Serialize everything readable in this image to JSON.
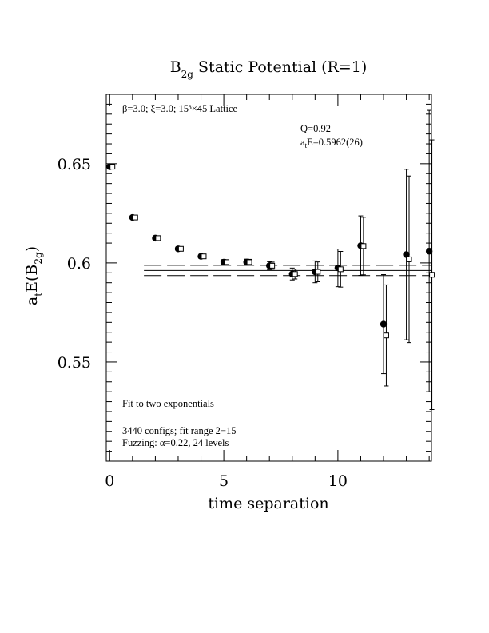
{
  "chart_data": {
    "type": "scatter",
    "title": {
      "main": "B",
      "sub": "2g",
      "rest": " Static Potential (R=1)"
    },
    "xlabel": "time separation",
    "ylabel": {
      "a": "a",
      "a_sub": "t",
      "mid": "E(B",
      "mid_sub": "2g",
      "end": ")"
    },
    "xlim": [
      -0.15,
      14.1
    ],
    "ylim": [
      0.5,
      0.685
    ],
    "x_ticks": [
      "0",
      "5",
      "10"
    ],
    "x_tick_values": [
      0,
      5,
      10
    ],
    "y_ticks": [
      "0.55",
      "0.6",
      "0.65"
    ],
    "y_tick_values": [
      0.55,
      0.6,
      0.65
    ],
    "annotations": {
      "lattice": "β=3.0; ξ=3.0; 15³×45 Lattice",
      "q": "Q=0.92",
      "energy_a": "a",
      "energy_sub": "t",
      "energy_rest": "E=0.5962(26)",
      "fit": "Fit to two exponentials",
      "configs": "3440 configs; fit range 2−15",
      "fuzzing": "Fuzzing: α=0.22, 24 levels"
    },
    "fit": {
      "x_range": [
        1.5,
        14.1
      ],
      "value": 0.5962,
      "lower": 0.5936,
      "upper": 0.5988
    },
    "series": [
      {
        "marker": "filled-circle",
        "points": [
          {
            "x": 0,
            "y": 0.6485,
            "err": 0.0008
          },
          {
            "x": 1,
            "y": 0.6229,
            "err": 0.0008
          },
          {
            "x": 2,
            "y": 0.6125,
            "err": 0.0009
          },
          {
            "x": 3,
            "y": 0.6071,
            "err": 0.001
          },
          {
            "x": 4,
            "y": 0.6033,
            "err": 0.0011
          },
          {
            "x": 5,
            "y": 0.6004,
            "err": 0.0013
          },
          {
            "x": 6,
            "y": 0.6004,
            "err": 0.0015
          },
          {
            "x": 7,
            "y": 0.5986,
            "err": 0.002
          },
          {
            "x": 8,
            "y": 0.5944,
            "err": 0.003
          },
          {
            "x": 9,
            "y": 0.5955,
            "err": 0.0055
          },
          {
            "x": 10,
            "y": 0.5975,
            "err": 0.0095
          },
          {
            "x": 11,
            "y": 0.6087,
            "err": 0.015
          },
          {
            "x": 12,
            "y": 0.5691,
            "err": 0.025
          },
          {
            "x": 13,
            "y": 0.6042,
            "err": 0.043
          },
          {
            "x": 14,
            "y": 0.6059,
            "err": 0.071
          }
        ]
      },
      {
        "marker": "open-square",
        "points": [
          {
            "x": 0,
            "y": 0.6485,
            "err": 0.0007
          },
          {
            "x": 1,
            "y": 0.6229,
            "err": 0.0007
          },
          {
            "x": 2,
            "y": 0.6125,
            "err": 0.0008
          },
          {
            "x": 3,
            "y": 0.6071,
            "err": 0.0009
          },
          {
            "x": 4,
            "y": 0.6033,
            "err": 0.001
          },
          {
            "x": 5,
            "y": 0.6004,
            "err": 0.0012
          },
          {
            "x": 6,
            "y": 0.6004,
            "err": 0.0014
          },
          {
            "x": 7,
            "y": 0.5986,
            "err": 0.0018
          },
          {
            "x": 8,
            "y": 0.5944,
            "err": 0.0025
          },
          {
            "x": 9,
            "y": 0.5955,
            "err": 0.005
          },
          {
            "x": 10,
            "y": 0.5968,
            "err": 0.009
          },
          {
            "x": 11,
            "y": 0.6085,
            "err": 0.0145
          },
          {
            "x": 12,
            "y": 0.5634,
            "err": 0.0255
          },
          {
            "x": 13,
            "y": 0.6018,
            "err": 0.042
          },
          {
            "x": 14,
            "y": 0.594,
            "err": 0.068
          }
        ]
      }
    ],
    "grid": false,
    "legend": "none"
  }
}
